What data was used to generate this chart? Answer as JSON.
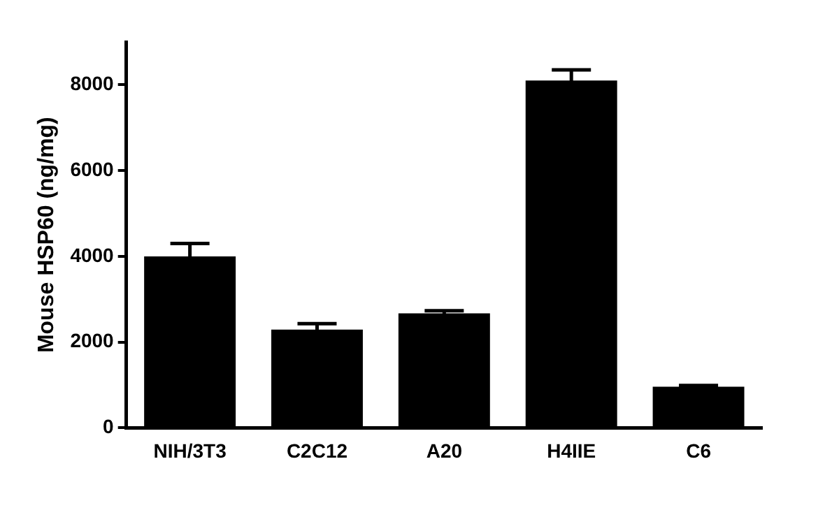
{
  "chart_data": {
    "type": "bar",
    "ylabel": "Mouse HSP60 (ng/mg)",
    "categories": [
      "NIH/3T3",
      "C2C12",
      "A20",
      "H4IIE",
      "C6"
    ],
    "values": [
      4000,
      2290,
      2670,
      8100,
      960
    ],
    "errors": [
      300,
      140,
      60,
      250,
      30
    ],
    "color": "#000000",
    "ylim": [
      0,
      9000
    ],
    "yticks": [
      0,
      2000,
      4000,
      6000,
      8000
    ],
    "grid": false,
    "legend": false
  }
}
